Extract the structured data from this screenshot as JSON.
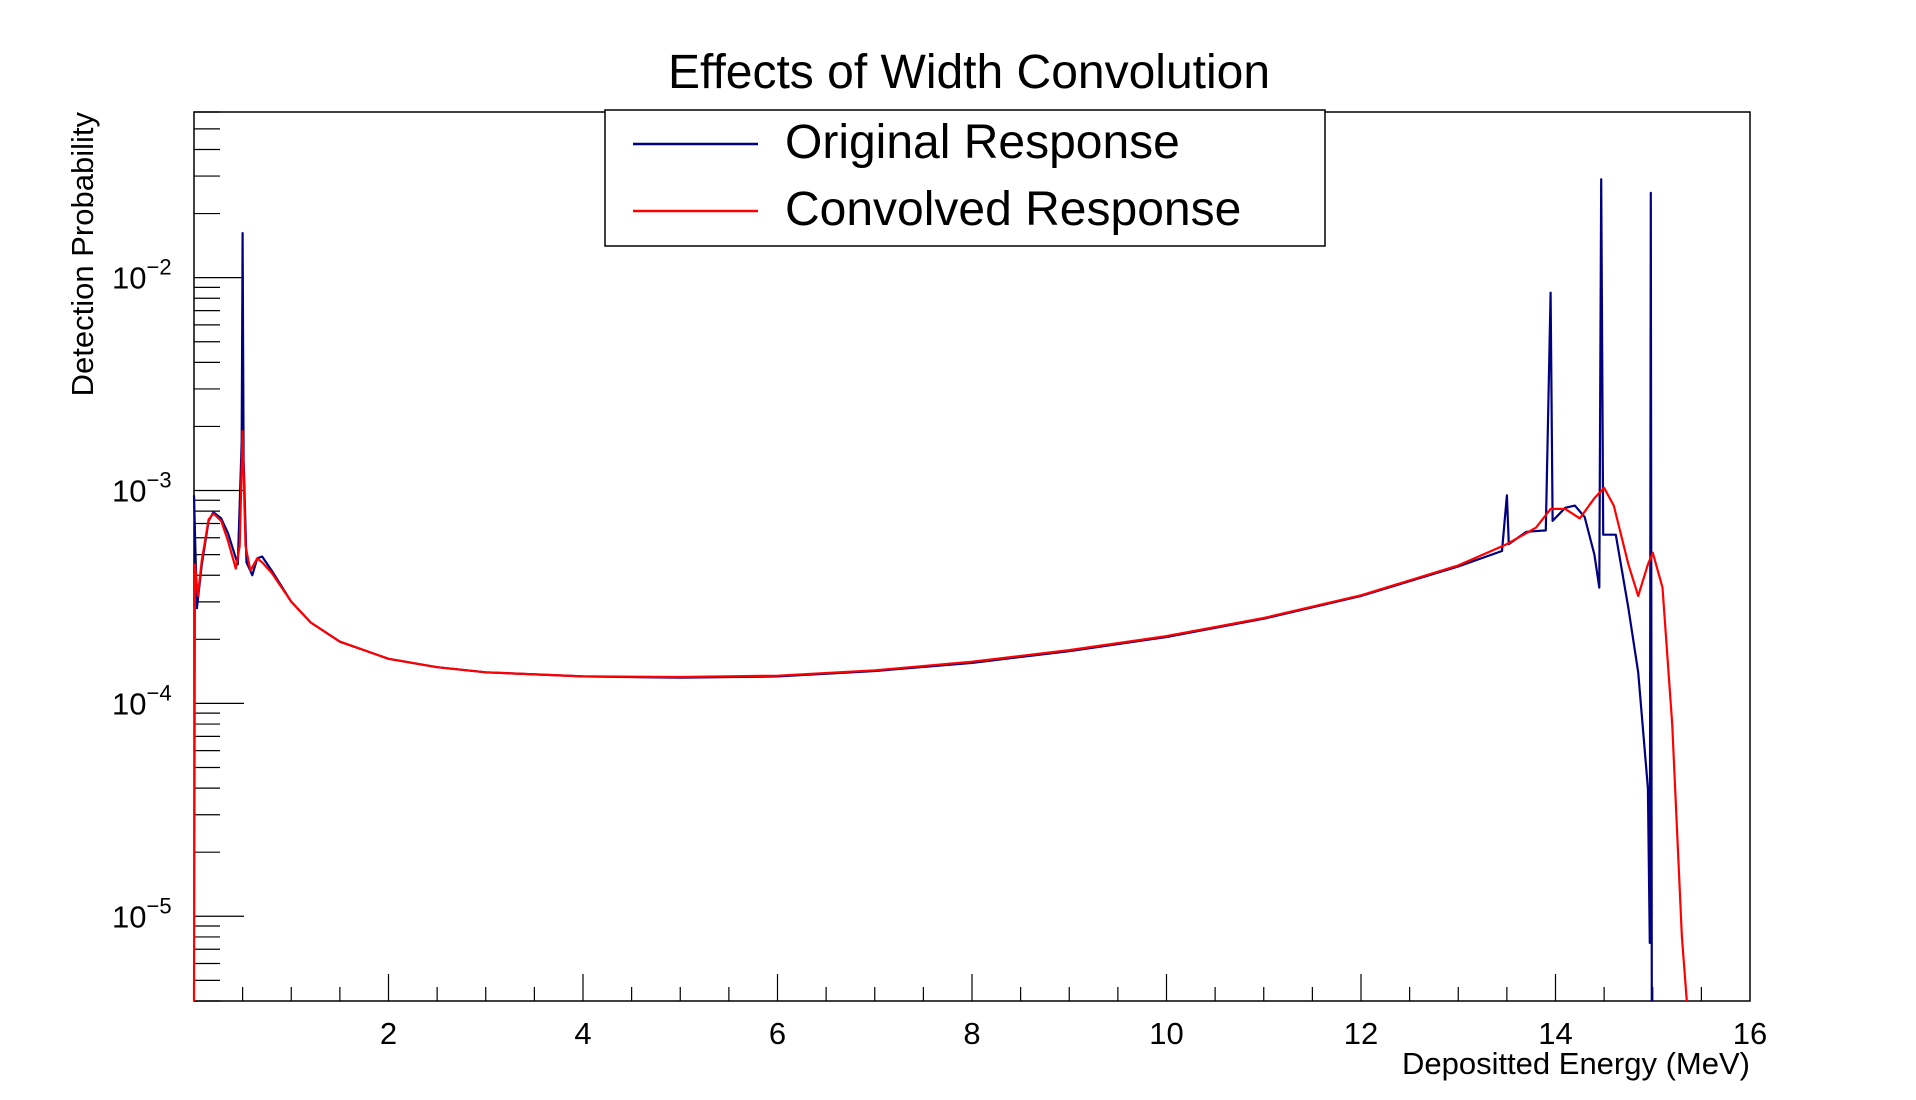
{
  "chart_data": {
    "type": "line",
    "title": "Effects of Width Convolution",
    "xlabel": "Depositted Energy (MeV)",
    "ylabel": "Detection Probability",
    "xlim": [
      0,
      16
    ],
    "ylim": [
      4e-06,
      0.06
    ],
    "yscale": "log",
    "grid": false,
    "legend_position": "top-center",
    "x_ticks": [
      2,
      4,
      6,
      8,
      10,
      12,
      14,
      16
    ],
    "y_ticks": [
      {
        "value": 1e-05,
        "base": "10",
        "exp": "−5"
      },
      {
        "value": 0.0001,
        "base": "10",
        "exp": "−4"
      },
      {
        "value": 0.001,
        "base": "10",
        "exp": "−3"
      },
      {
        "value": 0.01,
        "base": "10",
        "exp": "−2"
      }
    ],
    "series": [
      {
        "name": "Original Response",
        "color": "#000080",
        "points": [
          [
            0.0,
            0.00095
          ],
          [
            0.03,
            0.00028
          ],
          [
            0.08,
            0.00045
          ],
          [
            0.15,
            0.00072
          ],
          [
            0.2,
            0.00079
          ],
          [
            0.28,
            0.00074
          ],
          [
            0.35,
            0.00063
          ],
          [
            0.45,
            0.00045
          ],
          [
            0.49,
            0.0017
          ],
          [
            0.5,
            0.0162
          ],
          [
            0.51,
            0.0014
          ],
          [
            0.54,
            0.00046
          ],
          [
            0.6,
            0.0004
          ],
          [
            0.65,
            0.00048
          ],
          [
            0.7,
            0.00049
          ],
          [
            0.8,
            0.00042
          ],
          [
            1.0,
            0.0003
          ],
          [
            1.2,
            0.00024
          ],
          [
            1.5,
            0.000195
          ],
          [
            2.0,
            0.000162
          ],
          [
            2.5,
            0.000148
          ],
          [
            3.0,
            0.00014
          ],
          [
            4.0,
            0.000134
          ],
          [
            5.0,
            0.000132
          ],
          [
            6.0,
            0.000134
          ],
          [
            7.0,
            0.000142
          ],
          [
            8.0,
            0.000155
          ],
          [
            9.0,
            0.000176
          ],
          [
            10.0,
            0.000205
          ],
          [
            11.0,
            0.00025
          ],
          [
            12.0,
            0.00032
          ],
          [
            13.0,
            0.00044
          ],
          [
            13.45,
            0.00052
          ],
          [
            13.5,
            0.00095
          ],
          [
            13.52,
            0.00056
          ],
          [
            13.7,
            0.00064
          ],
          [
            13.9,
            0.00065
          ],
          [
            13.95,
            0.0085
          ],
          [
            13.97,
            0.00072
          ],
          [
            14.1,
            0.00083
          ],
          [
            14.2,
            0.00085
          ],
          [
            14.3,
            0.00075
          ],
          [
            14.4,
            0.0005
          ],
          [
            14.45,
            0.00035
          ],
          [
            14.47,
            0.029
          ],
          [
            14.49,
            0.00062
          ],
          [
            14.55,
            0.00062
          ],
          [
            14.62,
            0.00062
          ],
          [
            14.75,
            0.00028
          ],
          [
            14.85,
            0.00014
          ],
          [
            14.95,
            4e-05
          ],
          [
            14.97,
            7.5e-06
          ],
          [
            14.98,
            0.025
          ],
          [
            14.99,
            3.5e-06
          ]
        ]
      },
      {
        "name": "Convolved Response",
        "color": "#ff0000",
        "points": [
          [
            0.0,
            3.5e-06
          ],
          [
            0.01,
            0.00045
          ],
          [
            0.04,
            0.00032
          ],
          [
            0.08,
            0.00047
          ],
          [
            0.15,
            0.00073
          ],
          [
            0.2,
            0.00078
          ],
          [
            0.28,
            0.00072
          ],
          [
            0.35,
            0.00058
          ],
          [
            0.43,
            0.00043
          ],
          [
            0.47,
            0.00055
          ],
          [
            0.5,
            0.0019
          ],
          [
            0.53,
            0.00055
          ],
          [
            0.58,
            0.00042
          ],
          [
            0.65,
            0.00048
          ],
          [
            0.7,
            0.00046
          ],
          [
            0.8,
            0.00041
          ],
          [
            1.0,
            0.0003
          ],
          [
            1.2,
            0.00024
          ],
          [
            1.5,
            0.000195
          ],
          [
            2.0,
            0.000162
          ],
          [
            2.5,
            0.000148
          ],
          [
            3.0,
            0.00014
          ],
          [
            4.0,
            0.000134
          ],
          [
            5.0,
            0.000133
          ],
          [
            6.0,
            0.000135
          ],
          [
            7.0,
            0.000143
          ],
          [
            8.0,
            0.000157
          ],
          [
            9.0,
            0.000178
          ],
          [
            10.0,
            0.000207
          ],
          [
            11.0,
            0.000252
          ],
          [
            12.0,
            0.000322
          ],
          [
            13.0,
            0.000445
          ],
          [
            13.5,
            0.00056
          ],
          [
            13.8,
            0.00067
          ],
          [
            13.95,
            0.00082
          ],
          [
            14.1,
            0.00082
          ],
          [
            14.25,
            0.00074
          ],
          [
            14.4,
            0.00092
          ],
          [
            14.5,
            0.00103
          ],
          [
            14.6,
            0.00085
          ],
          [
            14.75,
            0.00045
          ],
          [
            14.85,
            0.00032
          ],
          [
            14.95,
            0.00045
          ],
          [
            15.0,
            0.00051
          ],
          [
            15.1,
            0.00035
          ],
          [
            15.2,
            8e-05
          ],
          [
            15.3,
            8e-06
          ],
          [
            15.35,
            3.5e-06
          ]
        ]
      }
    ]
  }
}
